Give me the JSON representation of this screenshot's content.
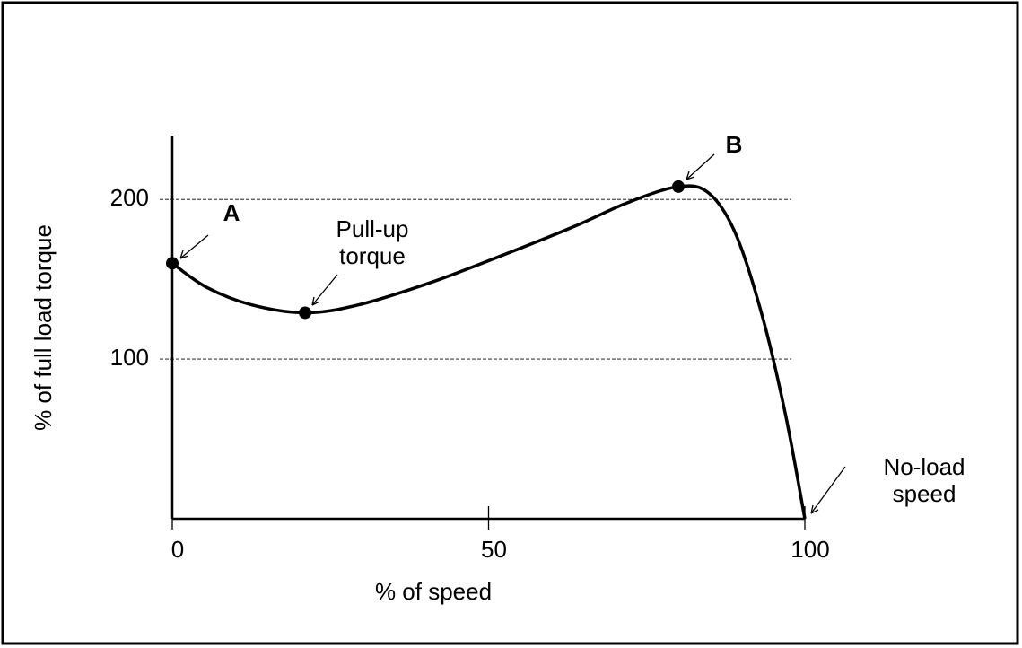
{
  "chart_data": {
    "type": "line",
    "xlabel": "% of speed",
    "ylabel": "% of full load torque",
    "xlim": [
      0,
      100
    ],
    "ylim": [
      0,
      240
    ],
    "xticks": [
      0,
      50,
      100
    ],
    "yticks": [
      100,
      200
    ],
    "grid": true,
    "series": [
      {
        "color": "#000000",
        "x": [
          0,
          5.4,
          12.5,
          21,
          29.5,
          40.9,
          52.2,
          63.5,
          72,
          80,
          84.8,
          89,
          93.2,
          96.9,
          100
        ],
        "values": [
          160,
          145,
          134,
          129,
          134,
          148,
          165,
          183,
          198,
          208,
          204,
          179,
          128,
          66,
          0
        ]
      }
    ],
    "markers": {
      "x": [
        0,
        21,
        80
      ],
      "values": [
        160,
        129,
        208
      ]
    },
    "annotations": [
      "A",
      "Pull-up torque",
      "B",
      "No-load speed"
    ]
  }
}
